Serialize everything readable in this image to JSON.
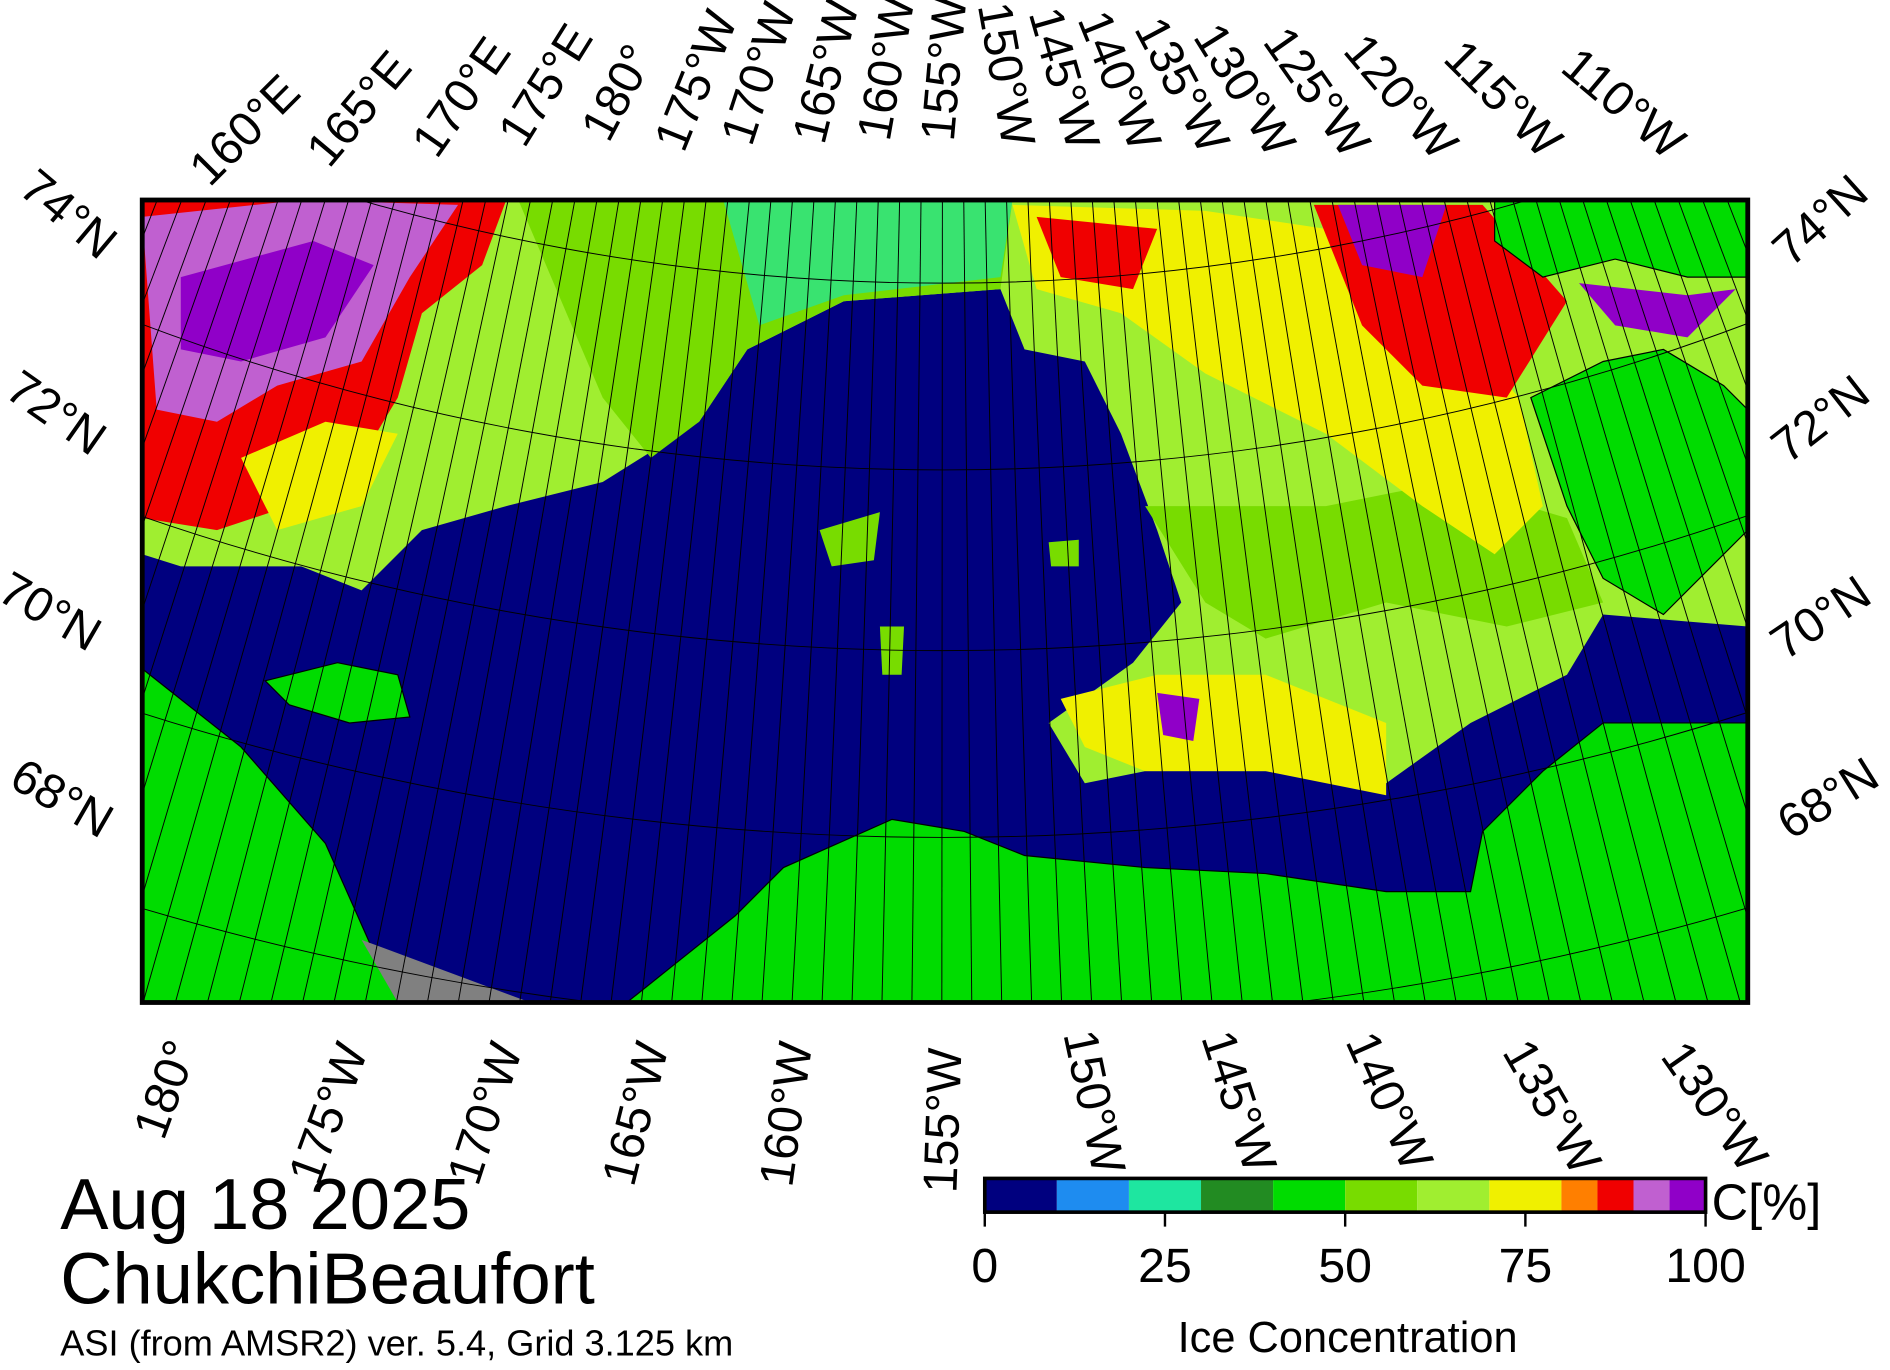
{
  "map": {
    "top_labels": [
      "160°E",
      "165°E",
      "170°E",
      "175°E",
      "180°",
      "175°W",
      "170°W",
      "165°W",
      "160°W",
      "155°W",
      "150°W",
      "145°W",
      "140°W",
      "135°W",
      "130°W",
      "125°W",
      "120°W",
      "115°W",
      "110°W"
    ],
    "bottom_labels": [
      "180°",
      "175°W",
      "170°W",
      "165°W",
      "160°W",
      "155°W",
      "150°W",
      "145°W",
      "140°W",
      "135°W",
      "130°W"
    ],
    "left_labels": [
      "74°N",
      "72°N",
      "70°N",
      "68°N"
    ],
    "right_labels": [
      "74°N",
      "72°N",
      "70°N",
      "68°N"
    ]
  },
  "caption": {
    "date": "Aug 18 2025",
    "region": "ChukchiBeaufort",
    "source": "ASI (from AMSR2) ver. 5.4,  Grid 3.125 km"
  },
  "colorbar": {
    "unit": "C[%]",
    "label": "Ice Concentration",
    "range": [
      0,
      100
    ],
    "ticks": [
      0,
      25,
      50,
      75,
      100
    ],
    "bins": [
      0,
      10,
      20,
      30,
      40,
      50,
      60,
      70,
      80,
      85,
      90,
      95,
      100
    ],
    "colors": [
      "#00007f",
      "#1e8cf0",
      "#1ee6a0",
      "#228b22",
      "#00dc00",
      "#78dc00",
      "#a0ee30",
      "#f0f000",
      "#ff7f00",
      "#f00000",
      "#c060d0",
      "#9000c8"
    ]
  }
}
